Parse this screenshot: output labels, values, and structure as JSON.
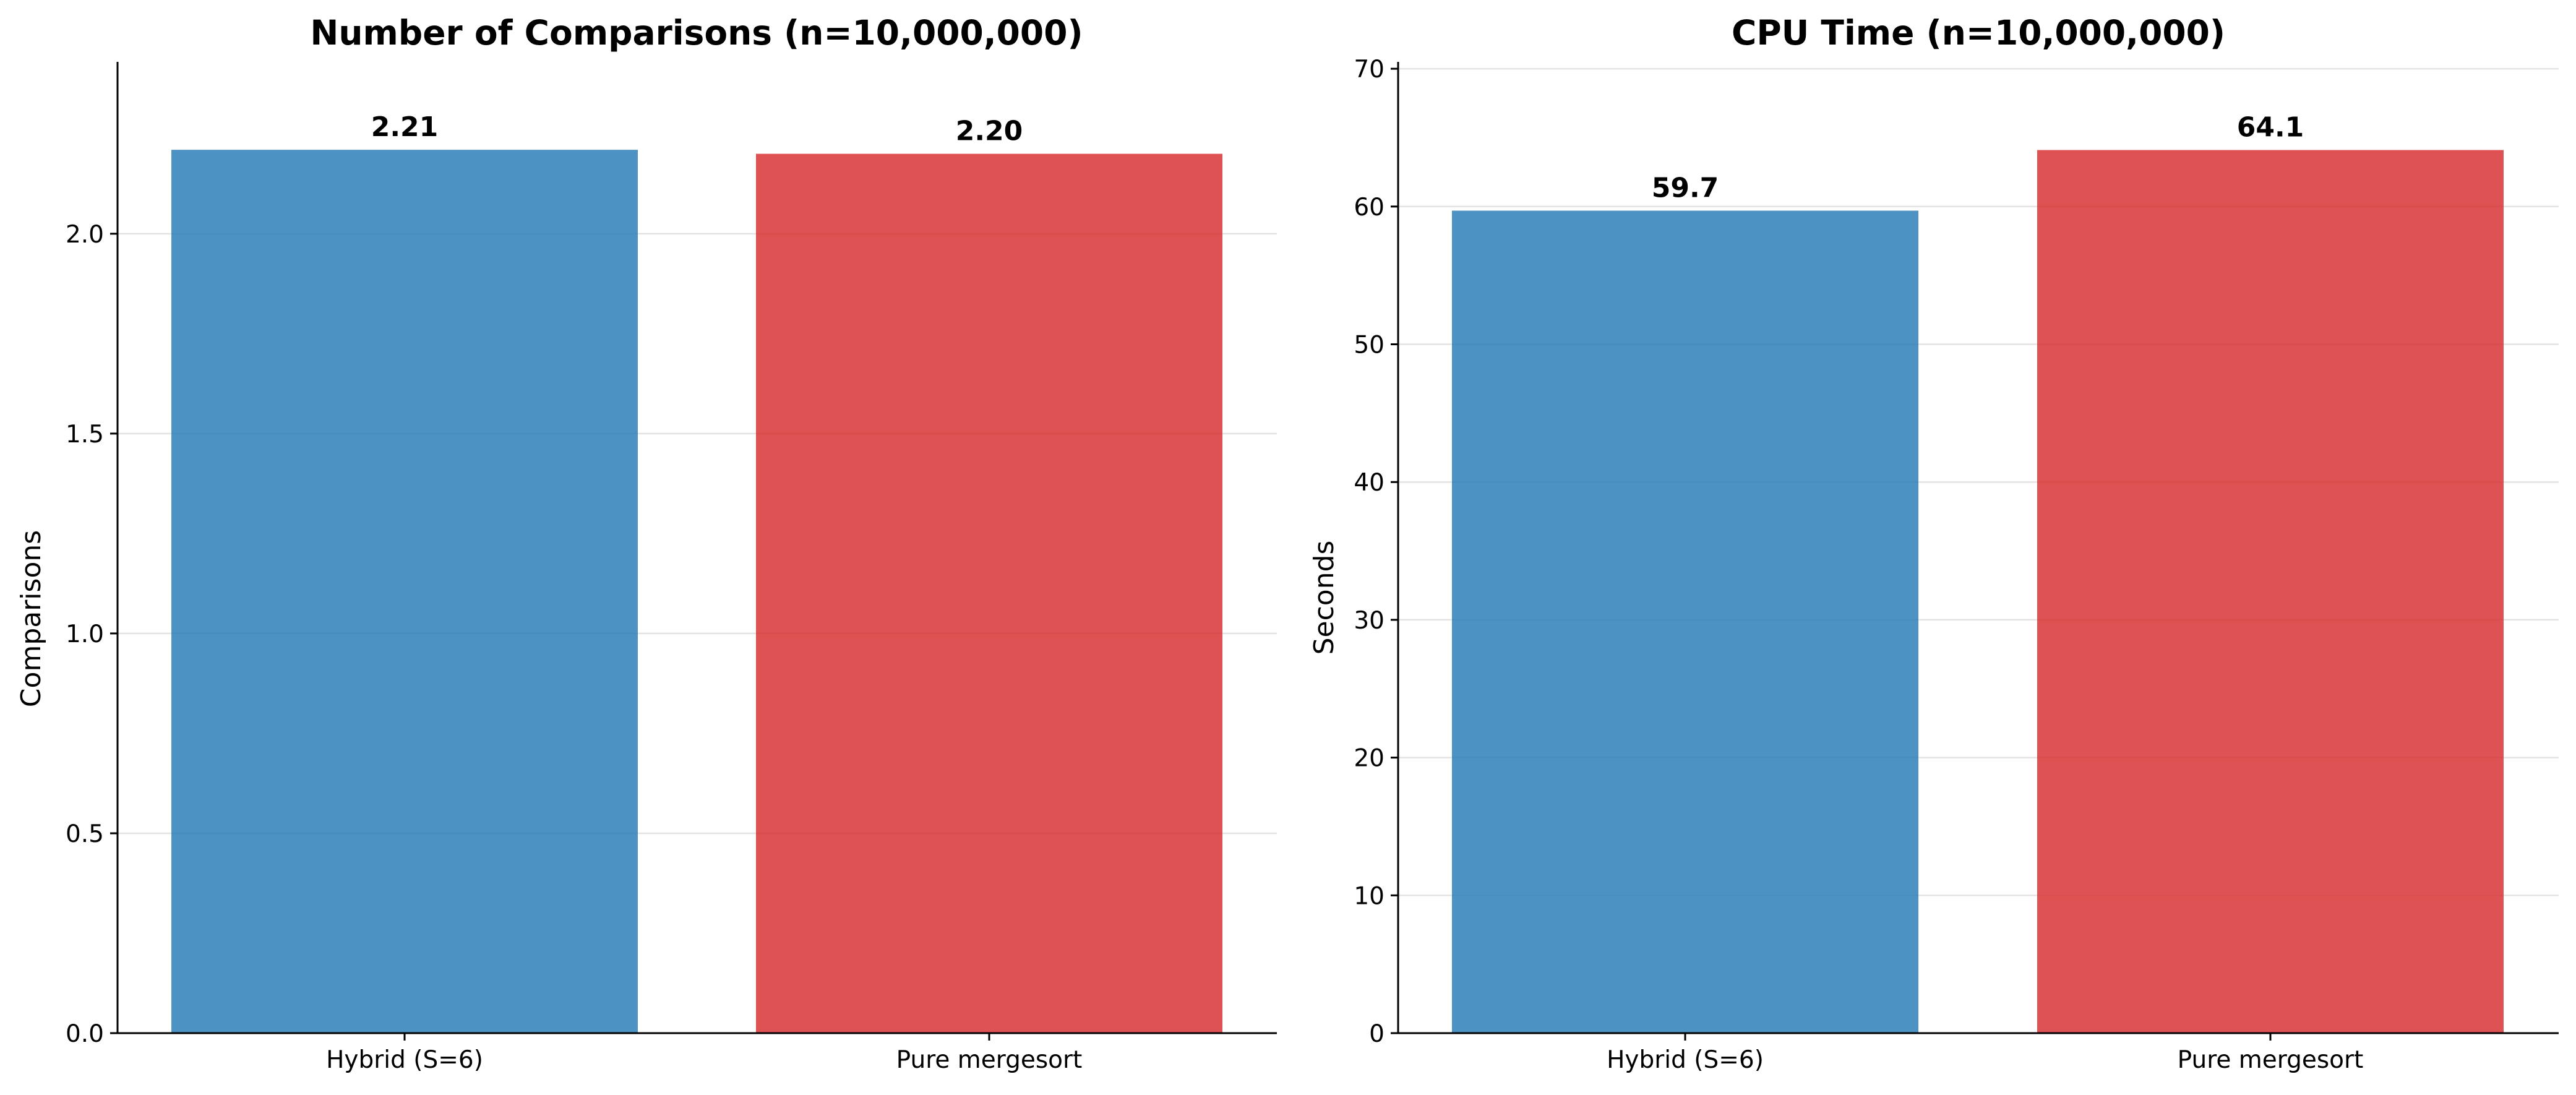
{
  "chart_data": [
    {
      "type": "bar",
      "title": "Number of Comparisons (n=10,000,000)",
      "xlabel": "",
      "ylabel": "Comparisons",
      "categories": [
        "Hybrid (S=6)",
        "Pure mergesort"
      ],
      "values": [
        2.21,
        2.2
      ],
      "value_labels": [
        "2.21",
        "2.20"
      ],
      "colors": [
        "#1f77b4",
        "#d62728"
      ],
      "ylim": [
        0,
        2.43
      ],
      "yticks": [
        0,
        0.5,
        1.0,
        1.5,
        2.0
      ],
      "ytick_labels": [
        "0.0",
        "0.5",
        "1.0",
        "1.5",
        "2.0"
      ],
      "grid": true
    },
    {
      "type": "bar",
      "title": "CPU Time (n=10,000,000)",
      "xlabel": "",
      "ylabel": "Seconds",
      "categories": [
        "Hybrid (S=6)",
        "Pure mergesort"
      ],
      "values": [
        59.7,
        64.1
      ],
      "value_labels": [
        "59.7",
        "64.1"
      ],
      "colors": [
        "#1f77b4",
        "#d62728"
      ],
      "ylim": [
        0,
        70.5
      ],
      "yticks": [
        0,
        10,
        20,
        30,
        40,
        50,
        60,
        70
      ],
      "ytick_labels": [
        "0",
        "10",
        "20",
        "30",
        "40",
        "50",
        "60",
        "70"
      ],
      "grid": true
    }
  ]
}
